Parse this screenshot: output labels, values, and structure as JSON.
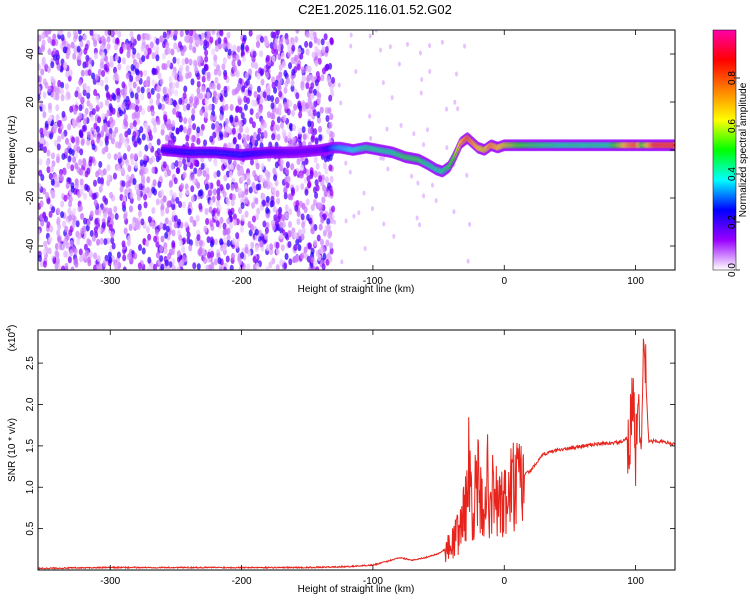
{
  "title": "C2E1.2025.116.01.52.G02",
  "chart_data": [
    {
      "type": "heatmap",
      "xlabel": "Height of straight line (km)",
      "ylabel": "Frequency (Hz)",
      "xlim": [
        -355,
        130
      ],
      "ylim": [
        -50,
        50
      ],
      "xticks": [
        -300,
        -200,
        -100,
        0,
        100
      ],
      "yticks": [
        -40,
        -20,
        0,
        20,
        40
      ],
      "colorbar": {
        "label": "Normalized spectral amplitude",
        "range": [
          0,
          1
        ],
        "ticks": [
          "0.0",
          "0.2",
          "0.4",
          "0.6",
          "0.8"
        ],
        "colors": [
          "#ffffff",
          "#9900ff",
          "#0000ff",
          "#00ffff",
          "#00ff00",
          "#ffff00",
          "#ff8000",
          "#ff0000",
          "#ff00aa"
        ]
      },
      "noise_region_x": [
        -355,
        -130
      ],
      "ridge": {
        "x": [
          -260,
          -240,
          -220,
          -200,
          -180,
          -160,
          -140,
          -130,
          -125,
          -115,
          -105,
          -95,
          -85,
          -75,
          -65,
          -58,
          -52,
          -47,
          -42,
          -38,
          -33,
          -28,
          -24,
          -20,
          -15,
          -10,
          -5,
          0,
          10,
          20,
          40,
          60,
          80,
          95,
          100,
          105,
          115,
          130
        ],
        "y": [
          0,
          -1,
          -1,
          -2,
          -1,
          -1,
          0,
          1,
          1,
          0,
          1,
          0,
          -1,
          -3,
          -4,
          -6,
          -8,
          -9,
          -7,
          -3,
          3,
          5,
          3,
          1,
          0,
          2,
          1,
          2,
          2,
          2,
          2,
          2,
          2,
          2,
          2,
          2,
          2,
          2
        ],
        "amplitude": [
          0.25,
          0.3,
          0.3,
          0.3,
          0.25,
          0.2,
          0.2,
          0.35,
          0.4,
          0.45,
          0.5,
          0.5,
          0.5,
          0.55,
          0.55,
          0.5,
          0.5,
          0.5,
          0.55,
          0.6,
          0.75,
          0.85,
          0.8,
          0.75,
          0.7,
          0.8,
          0.75,
          0.7,
          0.6,
          0.55,
          0.5,
          0.5,
          0.5,
          0.8,
          0.85,
          0.6,
          0.9,
          0.9
        ]
      }
    },
    {
      "type": "line",
      "xlabel": "Height of straight line (km)",
      "ylabel": "SNR (10 * v/v)",
      "y_multiplier": "(x10",
      "y_multiplier_exp": "4",
      "y_multiplier_close": ")",
      "xlim": [
        -355,
        130
      ],
      "ylim": [
        0,
        2.9
      ],
      "xticks": [
        -300,
        -200,
        -100,
        0,
        100
      ],
      "yticks": [
        0.5,
        1.0,
        1.5,
        2.0,
        2.5
      ],
      "ytick_labels": [
        "0.5",
        "1.0",
        "1.5",
        "2.0",
        "2.5"
      ],
      "color": "#e8231b",
      "series": [
        {
          "x": [
            -355,
            -300,
            -250,
            -200,
            -150,
            -120,
            -100,
            -90,
            -80,
            -70,
            -60,
            -50,
            -45,
            -40,
            -35,
            -30,
            -27,
            -24,
            -20,
            -17,
            -14,
            -10,
            -5,
            0,
            5,
            10,
            15,
            20,
            25,
            30,
            40,
            50,
            60,
            70,
            80,
            90,
            95,
            98,
            100,
            102,
            104,
            106,
            110,
            115,
            120,
            130
          ],
          "y": [
            0.02,
            0.03,
            0.03,
            0.03,
            0.03,
            0.04,
            0.06,
            0.1,
            0.15,
            0.12,
            0.15,
            0.2,
            0.25,
            0.35,
            0.5,
            0.8,
            1.3,
            0.9,
            1.1,
            0.8,
            1.2,
            1.0,
            0.9,
            0.85,
            1.1,
            1.1,
            1.15,
            1.2,
            1.3,
            1.4,
            1.45,
            1.47,
            1.5,
            1.52,
            1.53,
            1.55,
            1.6,
            2.3,
            1.4,
            2.5,
            1.2,
            2.9,
            1.55,
            1.56,
            1.55,
            1.52
          ],
          "spike_zone_x": [
            -45,
            15
          ]
        }
      ]
    }
  ]
}
